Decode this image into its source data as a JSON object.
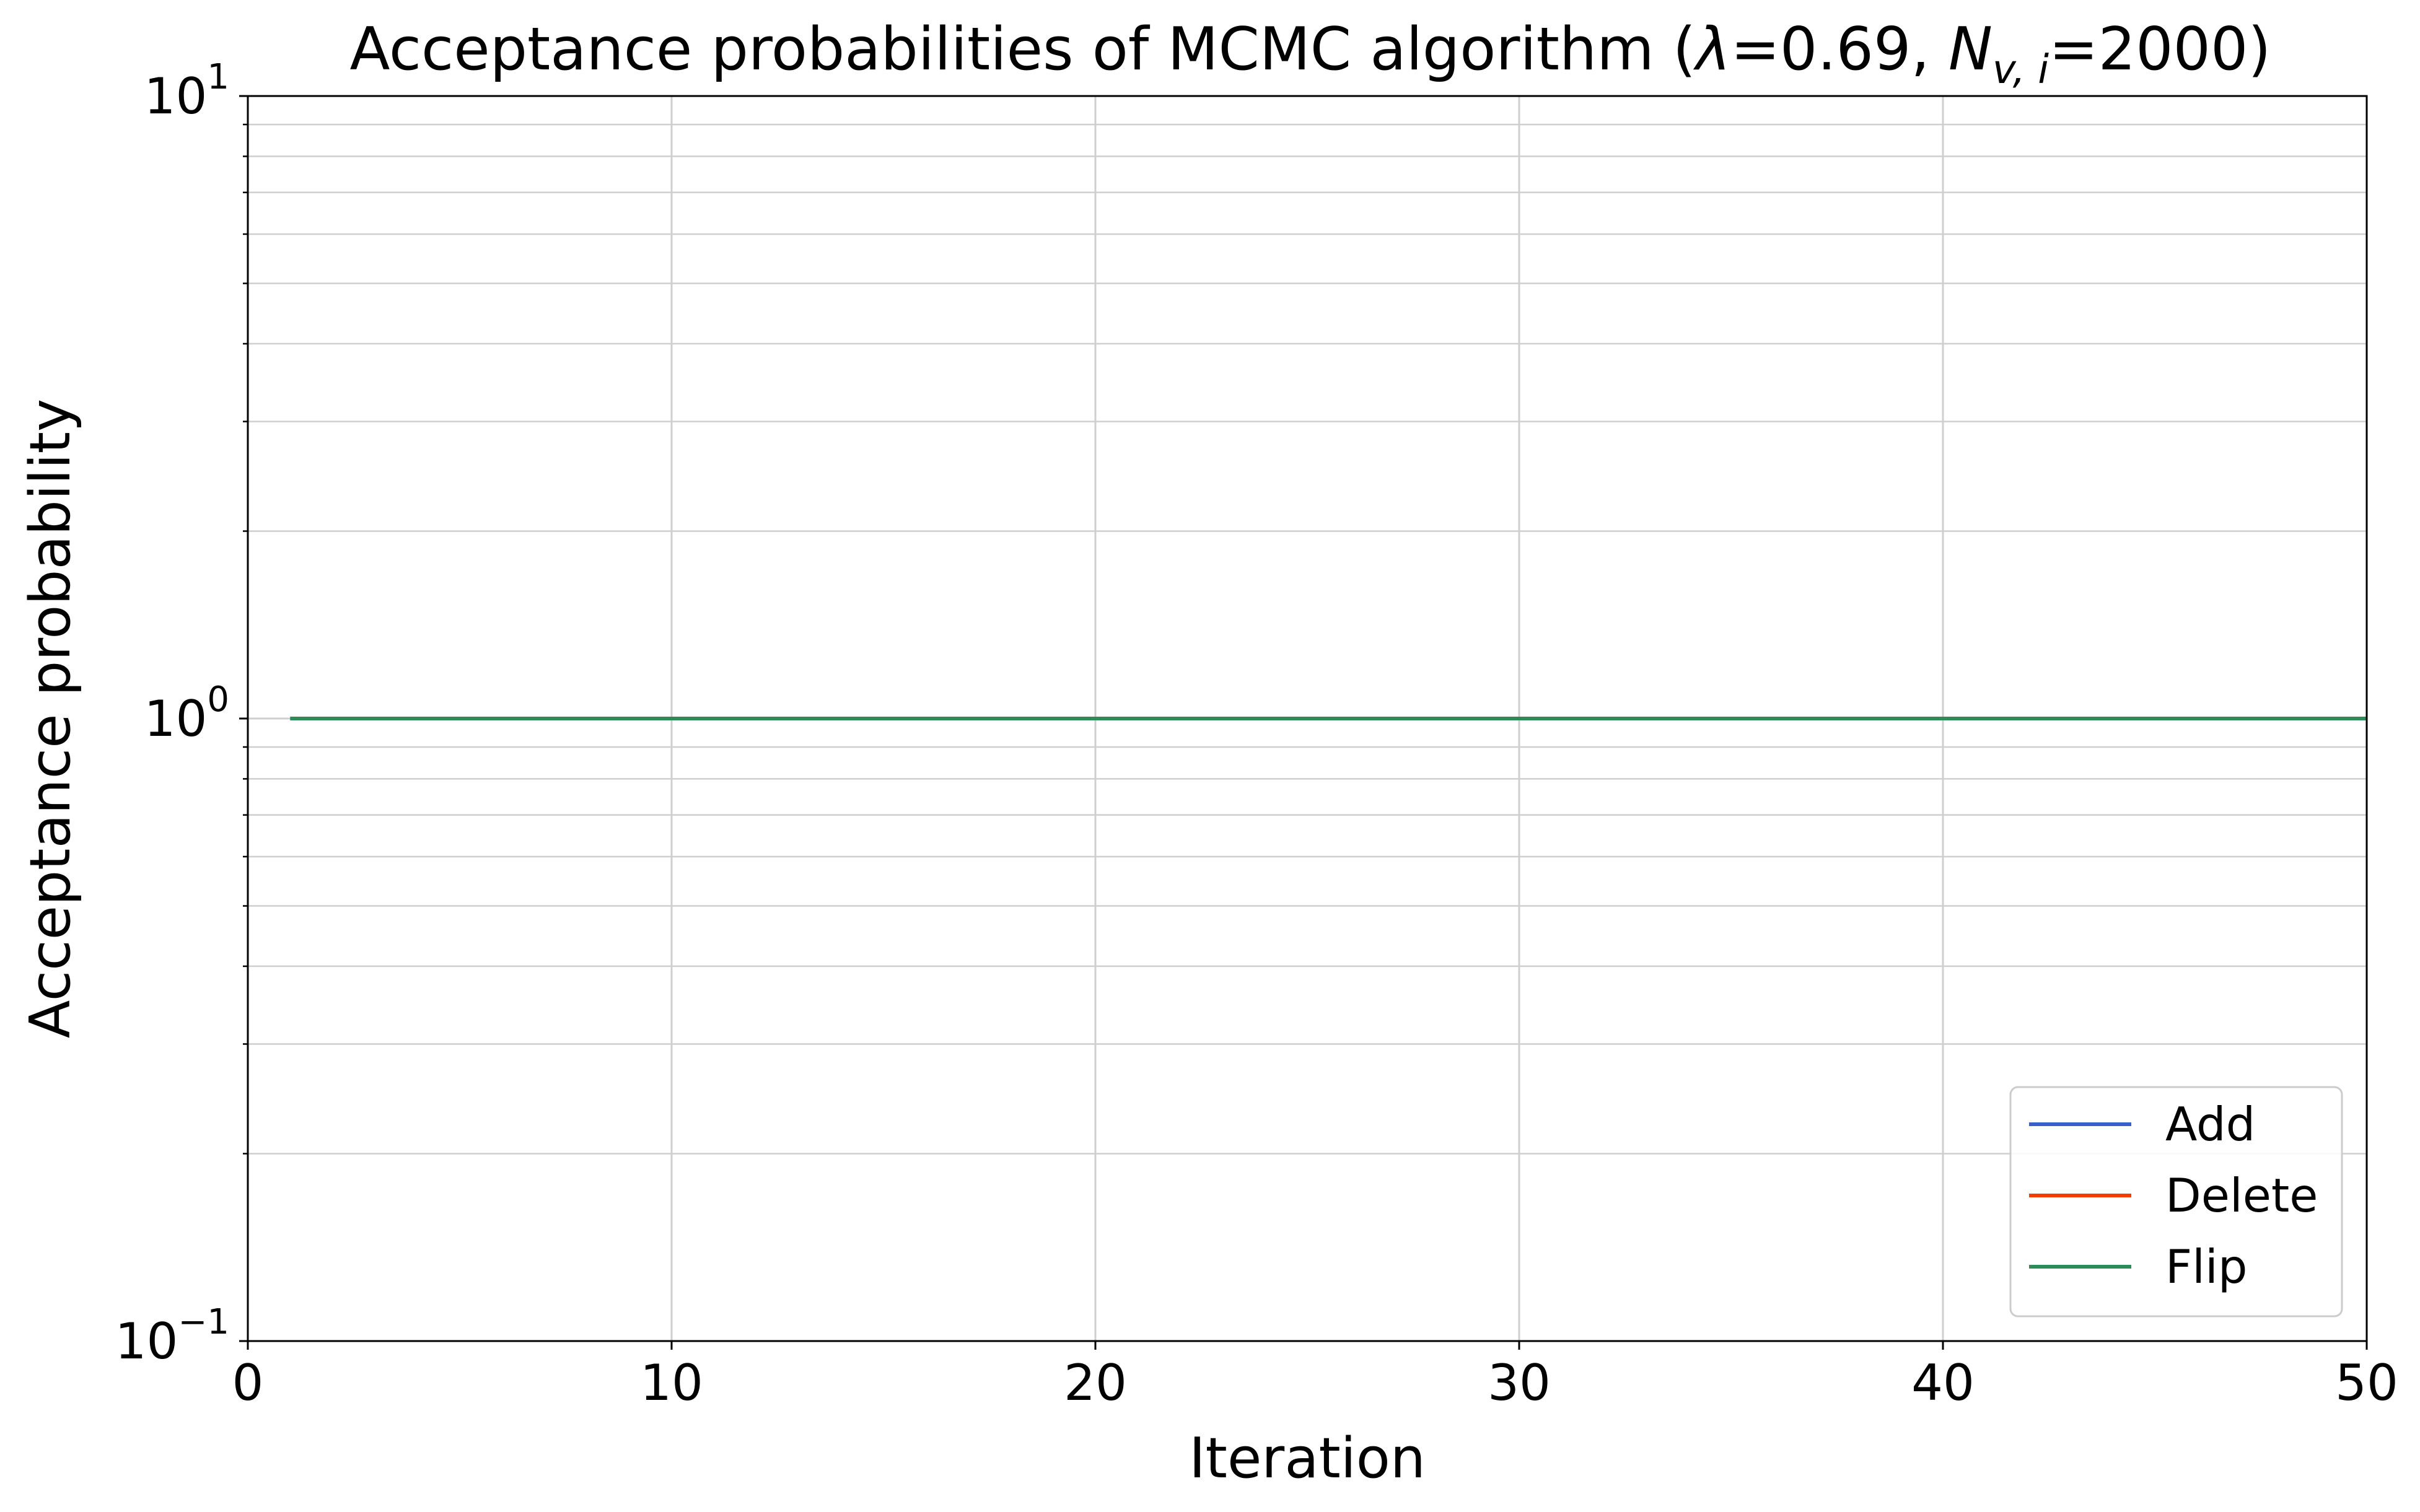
{
  "chart_data": {
    "type": "line",
    "title": {
      "prefix": "Acceptance probabilities of MCMC algorithm (",
      "lambda_symbol": "λ",
      "lambda_text": "=0.69, ",
      "n_symbol": "N",
      "n_subscript": "v, i",
      "n_text": "=2000)"
    },
    "xlabel": "Iteration",
    "ylabel": "Acceptance probability",
    "xlim": [
      0,
      50
    ],
    "ylim": [
      0.1,
      10
    ],
    "yscale": "log",
    "grid": true,
    "legend_position": "bottom-right",
    "xticks": [
      "0",
      "10",
      "20",
      "30",
      "40",
      "50"
    ],
    "yticks": [
      {
        "base": "10",
        "exp": "−1",
        "value": 0.1
      },
      {
        "base": "10",
        "exp": "0",
        "value": 1
      },
      {
        "base": "10",
        "exp": "1",
        "value": 10
      }
    ],
    "x": [
      1,
      2,
      3,
      4,
      5,
      6,
      7,
      8,
      9,
      10,
      11,
      12,
      13,
      14,
      15,
      16,
      17,
      18,
      19,
      20,
      21,
      22,
      23,
      24,
      25,
      26,
      27,
      28,
      29,
      30,
      31,
      32,
      33,
      34,
      35,
      36,
      37,
      38,
      39,
      40,
      41,
      42,
      43,
      44,
      45,
      46,
      47,
      48,
      49,
      50
    ],
    "series": [
      {
        "name": "Add",
        "color": "#3a5fcd",
        "values": [
          1,
          1,
          1,
          1,
          1,
          1,
          1,
          1,
          1,
          1,
          1,
          1,
          1,
          1,
          1,
          1,
          1,
          1,
          1,
          1,
          1,
          1,
          1,
          1,
          1,
          1,
          1,
          1,
          1,
          1,
          1,
          1,
          1,
          1,
          1,
          1,
          1,
          1,
          1,
          1,
          1,
          1,
          1,
          1,
          1,
          1,
          1,
          1,
          1,
          1
        ]
      },
      {
        "name": "Delete",
        "color": "#ee4000",
        "values": [
          1,
          1,
          1,
          1,
          1,
          1,
          1,
          1,
          1,
          1,
          1,
          1,
          1,
          1,
          1,
          1,
          1,
          1,
          1,
          1,
          1,
          1,
          1,
          1,
          1,
          1,
          1,
          1,
          1,
          1,
          1,
          1,
          1,
          1,
          1,
          1,
          1,
          1,
          1,
          1,
          1,
          1,
          1,
          1,
          1,
          1,
          1,
          1,
          1,
          1
        ]
      },
      {
        "name": "Flip",
        "color": "#2e8b57",
        "values": [
          1,
          1,
          1,
          1,
          1,
          1,
          1,
          1,
          1,
          1,
          1,
          1,
          1,
          1,
          1,
          1,
          1,
          1,
          1,
          1,
          1,
          1,
          1,
          1,
          1,
          1,
          1,
          1,
          1,
          1,
          1,
          1,
          1,
          1,
          1,
          1,
          1,
          1,
          1,
          1,
          1,
          1,
          1,
          1,
          1,
          1,
          1,
          1,
          1,
          1
        ]
      }
    ]
  }
}
